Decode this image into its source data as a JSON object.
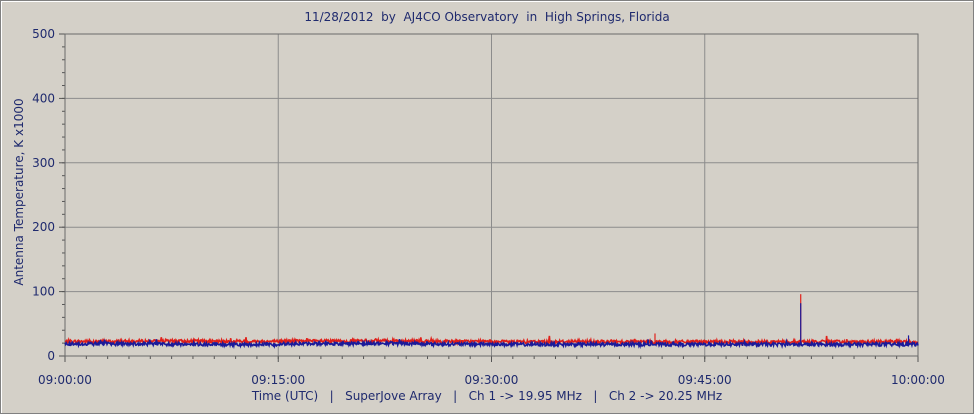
{
  "window": {
    "title": "11/28/2012  by  AJ4CO Observatory  in  High Springs, Florida",
    "xcaption": "Time (UTC)   |   SuperJove Array   |   Ch 1 -> 19.95 MHz   |   Ch 2 -> 20.25 MHz",
    "ylabel": "Antenna Temperature, K x1000"
  },
  "chart_data": {
    "type": "line",
    "title": "11/28/2012  by  AJ4CO Observatory  in  High Springs, Florida",
    "xlabel": "Time (UTC)   |   SuperJove Array   |   Ch 1 -> 19.95 MHz   |   Ch 2 -> 20.25 MHz",
    "ylabel": "Antenna Temperature, K x1000",
    "x_ticks": [
      "09:00:00",
      "09:15:00",
      "09:30:00",
      "09:45:00",
      "10:00:00"
    ],
    "x_range": [
      "09:00:00",
      "10:00:00"
    ],
    "y_ticks": [
      0,
      100,
      200,
      300,
      400,
      500
    ],
    "ylim": [
      0,
      500
    ],
    "grid": true,
    "legend": "none",
    "series": [
      {
        "color": "#e0201a",
        "baseline": 22,
        "x": [
          "09:00:00",
          "09:05:00",
          "09:10:00",
          "09:15:00",
          "09:20:00",
          "09:25:00",
          "09:30:00",
          "09:35:00",
          "09:40:00",
          "09:41:30",
          "09:45:00",
          "09:50:00",
          "09:51:45",
          "09:55:00",
          "10:00:00"
        ],
        "values": [
          22,
          23,
          23,
          22,
          24,
          23,
          22,
          22,
          23,
          35,
          22,
          22,
          96,
          22,
          22
        ]
      },
      {
        "color": "#1a1a9a",
        "baseline": 18,
        "x": [
          "09:00:00",
          "09:05:00",
          "09:10:00",
          "09:15:00",
          "09:20:00",
          "09:25:00",
          "09:30:00",
          "09:35:00",
          "09:40:00",
          "09:45:00",
          "09:51:45",
          "09:55:00",
          "09:59:20",
          "10:00:00"
        ],
        "values": [
          19,
          19,
          18,
          18,
          20,
          19,
          18,
          18,
          18,
          18,
          82,
          18,
          32,
          18
        ]
      }
    ]
  }
}
